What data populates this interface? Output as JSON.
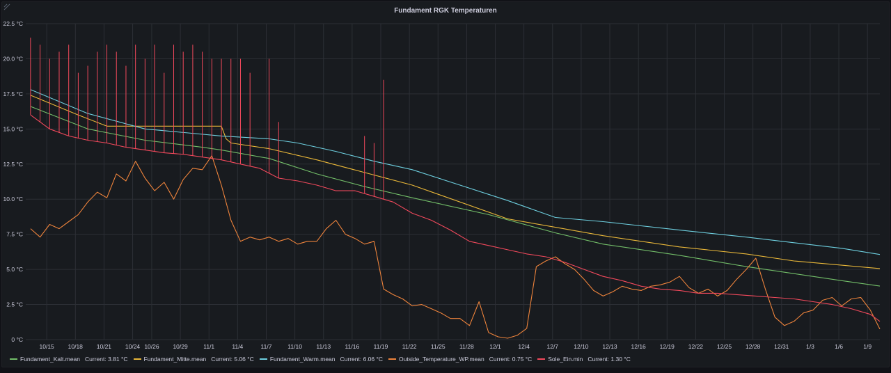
{
  "panel": {
    "title": "Fundament RGK Temperaturen"
  },
  "chart_data": {
    "type": "line",
    "title": "Fundament RGK Temperaturen",
    "xlabel": "",
    "ylabel": "",
    "ylim": [
      0,
      22.5
    ],
    "xlim": [
      "10/13",
      "1/10"
    ],
    "y_ticks": [
      "0 °C",
      "2.5 °C",
      "5.0 °C",
      "7.5 °C",
      "10.0 °C",
      "12.5 °C",
      "15.0 °C",
      "17.5 °C",
      "20.0 °C",
      "22.5 °C"
    ],
    "x_ticks": [
      "10/15",
      "10/18",
      "10/21",
      "10/24",
      "10/26",
      "10/29",
      "11/1",
      "11/4",
      "11/7",
      "11/10",
      "11/13",
      "11/16",
      "11/19",
      "11/22",
      "11/25",
      "11/28",
      "12/1",
      "12/4",
      "12/7",
      "12/10",
      "12/13",
      "12/16",
      "12/19",
      "12/22",
      "12/25",
      "12/28",
      "12/31",
      "1/3",
      "1/6",
      "1/9"
    ],
    "grid": true,
    "legend_position": "bottom-left",
    "series": [
      {
        "name": "Fundament_Kalt.mean",
        "color": "#73bf69",
        "current": "Current: 3.81 °C",
        "x": [
          0,
          6,
          12,
          18,
          20,
          25,
          30,
          35,
          40,
          48,
          55,
          60,
          68,
          75,
          80,
          85,
          89
        ],
        "y": [
          16.6,
          15.0,
          14.2,
          13.7,
          13.5,
          12.9,
          11.8,
          10.9,
          10.1,
          8.9,
          7.6,
          6.8,
          6.0,
          5.2,
          4.7,
          4.2,
          3.81
        ]
      },
      {
        "name": "Fundament_Mitte.mean",
        "color": "#eab839",
        "current": "Current: 5.06 °C",
        "x": [
          0,
          5,
          8,
          20,
          20.5,
          21,
          25,
          30,
          35,
          40,
          50,
          55,
          60,
          68,
          75,
          80,
          85,
          89
        ],
        "y": [
          17.4,
          16.0,
          15.2,
          15.2,
          14.3,
          14.0,
          13.6,
          12.8,
          11.9,
          11.0,
          8.6,
          8.0,
          7.4,
          6.6,
          6.1,
          5.6,
          5.3,
          5.06
        ]
      },
      {
        "name": "Fundament_Warm.mean",
        "color": "#6ed0e0",
        "current": "Current: 6.06 °C",
        "x": [
          0,
          6,
          12,
          20,
          25,
          28,
          32,
          36,
          40,
          45,
          50,
          55,
          60,
          68,
          75,
          80,
          85,
          89
        ],
        "y": [
          17.8,
          16.1,
          15.0,
          14.5,
          14.3,
          14.0,
          13.4,
          12.7,
          12.1,
          11.0,
          9.9,
          8.7,
          8.4,
          7.8,
          7.3,
          6.9,
          6.5,
          6.06
        ]
      },
      {
        "name": "Outside_Temperature_WP.mean",
        "color": "#ef843c",
        "current": "Current: 0.75 °C",
        "x": [
          0,
          1,
          2,
          3,
          4,
          5,
          6,
          7,
          8,
          9,
          10,
          11,
          12,
          13,
          14,
          15,
          16,
          17,
          18,
          19,
          20,
          21,
          22,
          23,
          24,
          25,
          26,
          27,
          28,
          29,
          30,
          31,
          32,
          33,
          34,
          35,
          36,
          37,
          38,
          39,
          40,
          41,
          42,
          43,
          44,
          45,
          46,
          47,
          48,
          49,
          50,
          51,
          52,
          53,
          54,
          55,
          56,
          57,
          58,
          59,
          60,
          61,
          62,
          63,
          64,
          65,
          66,
          67,
          68,
          69,
          70,
          71,
          72,
          73,
          74,
          75,
          76,
          77,
          78,
          79,
          80,
          81,
          82,
          83,
          84,
          85,
          86,
          87,
          88,
          89
        ],
        "y": [
          7.9,
          7.3,
          8.2,
          7.9,
          8.4,
          8.9,
          9.8,
          10.5,
          10.1,
          11.8,
          11.3,
          12.7,
          11.5,
          10.6,
          11.2,
          10.0,
          11.4,
          12.2,
          12.1,
          13.1,
          11.0,
          8.5,
          7.0,
          7.3,
          7.1,
          7.3,
          7.0,
          7.2,
          6.8,
          7.0,
          7.0,
          7.9,
          8.5,
          7.5,
          7.2,
          6.8,
          7.0,
          3.6,
          3.2,
          2.9,
          2.4,
          2.5,
          2.2,
          1.9,
          1.5,
          1.5,
          1.0,
          2.7,
          0.5,
          0.2,
          0.1,
          0.3,
          0.8,
          5.2,
          5.6,
          5.9,
          5.4,
          5.0,
          4.3,
          3.5,
          3.1,
          3.4,
          3.8,
          3.6,
          3.5,
          3.8,
          3.9,
          4.1,
          4.5,
          3.7,
          3.3,
          3.6,
          3.1,
          3.5,
          4.3,
          5.0,
          5.8,
          3.6,
          1.6,
          1.0,
          1.3,
          1.9,
          2.1,
          2.8,
          3.0,
          2.4,
          2.9,
          3.0,
          2.1,
          0.75
        ]
      },
      {
        "name": "Sole_Ein.min",
        "color": "#f2495c",
        "current": "Current: 1.30 °C",
        "x": [
          0,
          2,
          4,
          6,
          8,
          10,
          12,
          14,
          16,
          18,
          20,
          22,
          24,
          26,
          28,
          30,
          32,
          34,
          36,
          38,
          40,
          42,
          44,
          46,
          48,
          50,
          52,
          54,
          56,
          58,
          60,
          62,
          64,
          66,
          68,
          70,
          72,
          74,
          76,
          78,
          80,
          82,
          84,
          86,
          88,
          89
        ],
        "y": [
          16.0,
          15.0,
          14.5,
          14.2,
          14.0,
          13.7,
          13.5,
          13.3,
          13.2,
          13.0,
          12.8,
          12.5,
          12.2,
          11.5,
          11.3,
          11.0,
          10.6,
          10.6,
          10.2,
          9.8,
          9.0,
          8.5,
          7.8,
          7.0,
          6.7,
          6.4,
          6.1,
          5.9,
          5.5,
          5.0,
          4.5,
          4.2,
          3.8,
          3.6,
          3.5,
          3.3,
          3.3,
          3.2,
          3.1,
          3.0,
          2.9,
          2.7,
          2.5,
          2.2,
          1.8,
          1.3
        ],
        "spikes_x": [
          0,
          1,
          2,
          3,
          4,
          5,
          6,
          7,
          8,
          9,
          10,
          11,
          12,
          13,
          14,
          15,
          16,
          17,
          18,
          19,
          20,
          21,
          22,
          23,
          25,
          26,
          35,
          36,
          37
        ],
        "spikes_y": [
          21.5,
          21.0,
          20.0,
          20.5,
          21.0,
          19.0,
          19.5,
          20.5,
          21.0,
          20.5,
          19.5,
          21.0,
          20.0,
          21.0,
          19.0,
          21.0,
          20.5,
          21.0,
          20.5,
          20.0,
          20.0,
          20.0,
          20.0,
          19.0,
          20.0,
          15.5,
          14.5,
          14.0,
          18.5
        ]
      }
    ]
  },
  "legend": [
    {
      "label": "Fundament_Kalt.mean",
      "current": "Current: 3.81 °C",
      "color": "#73bf69"
    },
    {
      "label": "Fundament_Mitte.mean",
      "current": "Current: 5.06 °C",
      "color": "#eab839"
    },
    {
      "label": "Fundament_Warm.mean",
      "current": "Current: 6.06 °C",
      "color": "#6ed0e0"
    },
    {
      "label": "Outside_Temperature_WP.mean",
      "current": "Current: 0.75 °C",
      "color": "#ef843c"
    },
    {
      "label": "Sole_Ein.min",
      "current": "Current: 1.30 °C",
      "color": "#f2495c"
    }
  ]
}
